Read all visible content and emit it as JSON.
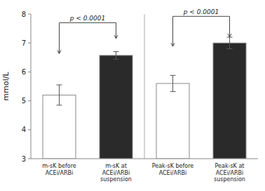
{
  "chart_data": {
    "type": "bar",
    "ylabel": "mmol/L",
    "categories": [
      "m-sK before\nACEi/ARBi",
      "m-sK at\nACEi/ARBi\nsuspension",
      "Peak-sK before\nACEi/ARBi",
      "Peak-sK at\nACEi/ARBi\nsuspension"
    ],
    "values": [
      5.2,
      6.57,
      5.6,
      7.0
    ],
    "errors": [
      0.35,
      0.13,
      0.28,
      0.2
    ],
    "colors": [
      "#ffffff",
      "#2a2a2a",
      "#ffffff",
      "#2a2a2a"
    ],
    "ylim": [
      3,
      8
    ],
    "yticks": [
      3,
      4,
      5,
      6,
      7,
      8
    ],
    "grid": false,
    "annotations": [
      {
        "text": "p < 0.0001",
        "between": [
          0,
          1
        ],
        "y": 7.7,
        "left_tip": 6.63,
        "right_tip": 7.15
      },
      {
        "text": "p < 0.0001",
        "between": [
          2,
          3
        ],
        "y": 7.92,
        "left_tip": 6.88,
        "right_tip": 7.2
      }
    ]
  }
}
